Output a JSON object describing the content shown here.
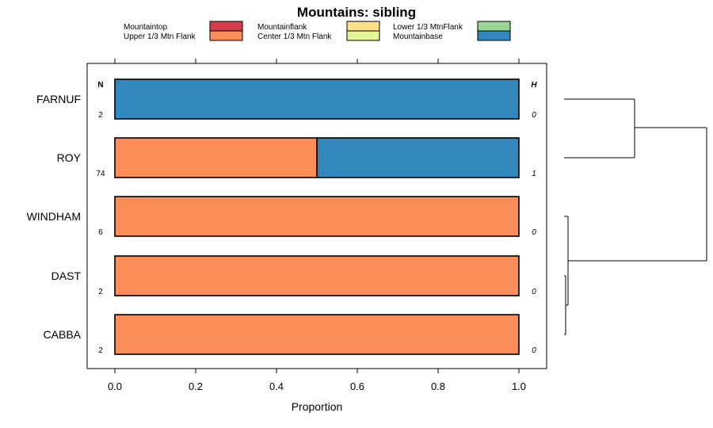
{
  "chart_data": {
    "type": "bar",
    "orientation": "horizontal",
    "stacked": true,
    "title": "Mountains: sibling",
    "xlabel": "Proportion",
    "ylabel": "",
    "xlim": [
      -0.07,
      1.07
    ],
    "x_ticks": [
      "0.0",
      "0.2",
      "0.4",
      "0.6",
      "0.8",
      "1.0"
    ],
    "x_tick_values": [
      0,
      0.2,
      0.4,
      0.6,
      0.8,
      1.0
    ],
    "categories": [
      "FARNUF",
      "ROY",
      "WINDHAM",
      "DAST",
      "CABBA"
    ],
    "series": [
      {
        "name": "Mountaintop",
        "color": "#d53e4f",
        "values": [
          0,
          0,
          0,
          0,
          0
        ]
      },
      {
        "name": "Upper 1/3 Mtn Flank",
        "color": "#fc8d59",
        "values": [
          0,
          0.5,
          1.0,
          1.0,
          1.0
        ]
      },
      {
        "name": "Mountainflank",
        "color": "#fee08b",
        "values": [
          0,
          0,
          0,
          0,
          0
        ]
      },
      {
        "name": "Center 1/3 Mtn Flank",
        "color": "#e6f598",
        "values": [
          0,
          0,
          0,
          0,
          0
        ]
      },
      {
        "name": "Lower 1/3 MtnFlank",
        "color": "#99d594",
        "values": [
          0,
          0,
          0,
          0,
          0
        ]
      },
      {
        "name": "Mountainbase",
        "color": "#3288bd",
        "values": [
          1.0,
          0.5,
          0,
          0,
          0
        ]
      }
    ],
    "n_header": "N",
    "h_header": "H",
    "n_values": [
      "2",
      "74",
      "6",
      "2",
      "2"
    ],
    "h_values": [
      "0",
      "1",
      "0",
      "0",
      "0"
    ],
    "legend_position": "top",
    "grid": false,
    "dendrogram": true
  }
}
